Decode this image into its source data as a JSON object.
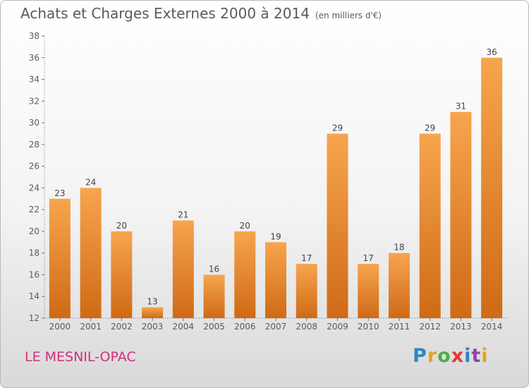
{
  "header": {
    "title": "Achats et Charges Externes 2000 à 2014",
    "unit": "(en milliers d'€)"
  },
  "footer": {
    "commune": "LE MESNIL-OPAC",
    "logo_text": "Proxiti",
    "logo_colors": [
      "#2e86c1",
      "#e8a317",
      "#4caf50",
      "#e53935",
      "#2e86c1",
      "#8e44ad",
      "#e8a317"
    ]
  },
  "colors": {
    "bar_light": "#f7a54e",
    "bar_dark": "#cf6a16",
    "text": "#5a5a5a",
    "commune": "#d0317b"
  },
  "chart_data": {
    "type": "bar",
    "categories": [
      "2000",
      "2001",
      "2002",
      "2003",
      "2004",
      "2005",
      "2006",
      "2007",
      "2008",
      "2009",
      "2010",
      "2011",
      "2012",
      "2013",
      "2014"
    ],
    "values": [
      23,
      24,
      20,
      13,
      21,
      16,
      20,
      19,
      17,
      29,
      17,
      18,
      29,
      31,
      36
    ],
    "title": "Achats et Charges Externes 2000 à 2014",
    "subtitle": "(en milliers d'€)",
    "ylim": [
      12,
      38
    ],
    "yticks": [
      12,
      14,
      16,
      18,
      20,
      22,
      24,
      26,
      28,
      30,
      32,
      34,
      36,
      38
    ],
    "grid": false,
    "data_labels": true
  }
}
